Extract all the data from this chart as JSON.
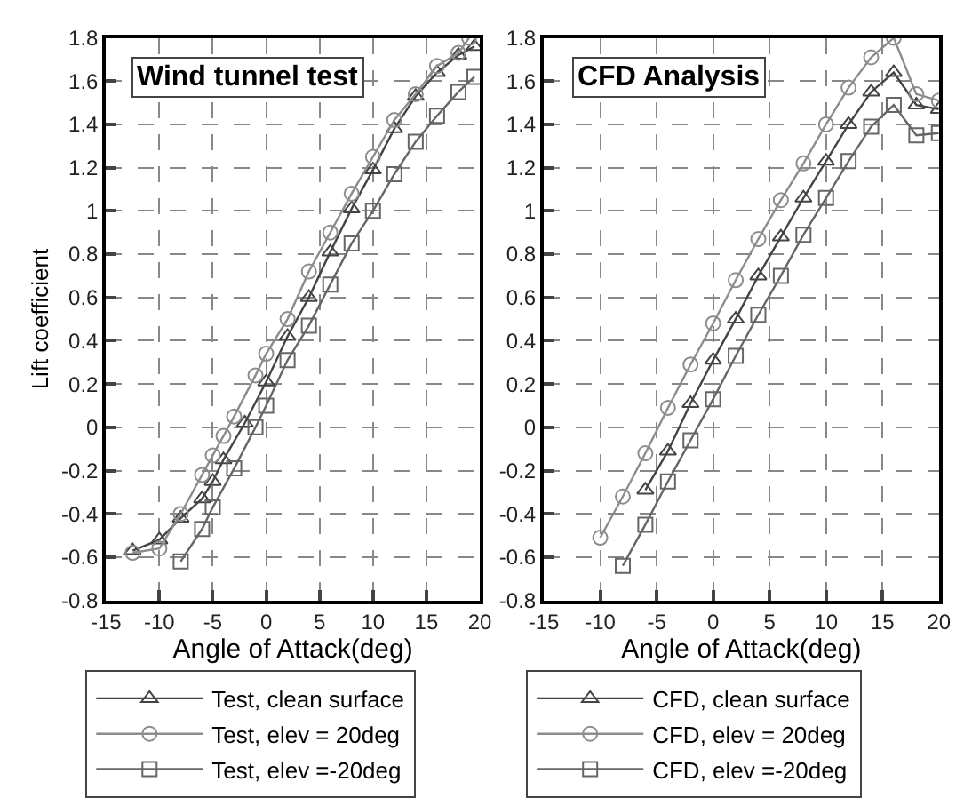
{
  "chart_data": [
    {
      "type": "line",
      "title": "Wind tunnel test",
      "xlabel": "Angle of Attack(deg)",
      "ylabel": "Lift coefficient",
      "xlim": [
        -15,
        20
      ],
      "ylim": [
        -0.8,
        1.8
      ],
      "xticks": [
        -15,
        -10,
        -5,
        0,
        5,
        10,
        15,
        20
      ],
      "yticks": [
        -0.8,
        -0.6,
        -0.4,
        -0.2,
        0,
        0.2,
        0.4,
        0.6,
        0.8,
        1,
        1.2,
        1.4,
        1.6,
        1.8
      ],
      "grid": true,
      "legend": "bottom",
      "line_style": "solid",
      "series": [
        {
          "name": "Test, clean surface",
          "color": "#444444",
          "marker": "triangle",
          "x": [
            -12.5,
            -10,
            -8,
            -6,
            -5,
            -4,
            -2,
            0,
            2,
            4,
            6,
            8,
            10,
            12,
            14,
            16,
            18,
            19.5
          ],
          "values": [
            -0.57,
            -0.52,
            -0.42,
            -0.33,
            -0.25,
            -0.15,
            0.02,
            0.21,
            0.42,
            0.6,
            0.81,
            1.01,
            1.19,
            1.38,
            1.53,
            1.64,
            1.72,
            1.76
          ]
        },
        {
          "name": "Test, elev = 20deg",
          "color": "#8c8c8c",
          "marker": "circle",
          "x": [
            -12.5,
            -10,
            -8,
            -6,
            -5,
            -4,
            -3,
            -1,
            0,
            2,
            4,
            6,
            8,
            10,
            12,
            14,
            16,
            18,
            19
          ],
          "values": [
            -0.58,
            -0.56,
            -0.4,
            -0.22,
            -0.13,
            -0.04,
            0.05,
            0.24,
            0.34,
            0.5,
            0.72,
            0.9,
            1.08,
            1.25,
            1.42,
            1.54,
            1.67,
            1.73,
            1.8
          ]
        },
        {
          "name": "Test, elev =-20deg",
          "color": "#666666",
          "marker": "square",
          "x": [
            -8,
            -6,
            -5,
            -3,
            -1,
            0,
            2,
            4,
            6,
            8,
            10,
            12,
            14,
            16,
            18,
            19.5
          ],
          "values": [
            -0.62,
            -0.47,
            -0.37,
            -0.19,
            0.0,
            0.1,
            0.31,
            0.47,
            0.66,
            0.85,
            1.0,
            1.17,
            1.32,
            1.44,
            1.55,
            1.62
          ]
        }
      ]
    },
    {
      "type": "line",
      "title": "CFD Analysis",
      "xlabel": "Angle of Attack(deg)",
      "xlim": [
        -15,
        20
      ],
      "ylim": [
        -0.8,
        1.8
      ],
      "xticks": [
        -15,
        -10,
        -5,
        0,
        5,
        10,
        15,
        20
      ],
      "yticks": [
        -0.8,
        -0.6,
        -0.4,
        -0.2,
        0,
        0.2,
        0.4,
        0.6,
        0.8,
        1,
        1.2,
        1.4,
        1.6,
        1.8
      ],
      "grid": true,
      "legend": "bottom",
      "line_style": "solid",
      "series": [
        {
          "name": "CFD, clean surface",
          "color": "#444444",
          "marker": "triangle",
          "x": [
            -6,
            -4,
            -2,
            0,
            2,
            4,
            6,
            8,
            10,
            12,
            14,
            16,
            18,
            20
          ],
          "values": [
            -0.29,
            -0.11,
            0.11,
            0.31,
            0.5,
            0.7,
            0.88,
            1.06,
            1.23,
            1.4,
            1.55,
            1.64,
            1.49,
            1.47
          ]
        },
        {
          "name": "CFD, elev = 20deg",
          "color": "#8c8c8c",
          "marker": "circle",
          "x": [
            -10,
            -8,
            -6,
            -4,
            -2,
            0,
            2,
            4,
            6,
            8,
            10,
            12,
            14,
            16,
            18,
            20
          ],
          "values": [
            -0.51,
            -0.32,
            -0.12,
            0.09,
            0.29,
            0.48,
            0.68,
            0.87,
            1.05,
            1.22,
            1.4,
            1.57,
            1.71,
            1.8,
            1.54,
            1.51
          ]
        },
        {
          "name": "CFD, elev =-20deg",
          "color": "#666666",
          "marker": "square",
          "x": [
            -8,
            -6,
            -4,
            -2,
            0,
            2,
            4,
            6,
            8,
            10,
            12,
            14,
            16,
            18,
            20
          ],
          "values": [
            -0.64,
            -0.45,
            -0.25,
            -0.06,
            0.13,
            0.33,
            0.52,
            0.7,
            0.89,
            1.06,
            1.23,
            1.39,
            1.49,
            1.35,
            1.36
          ]
        }
      ]
    }
  ]
}
